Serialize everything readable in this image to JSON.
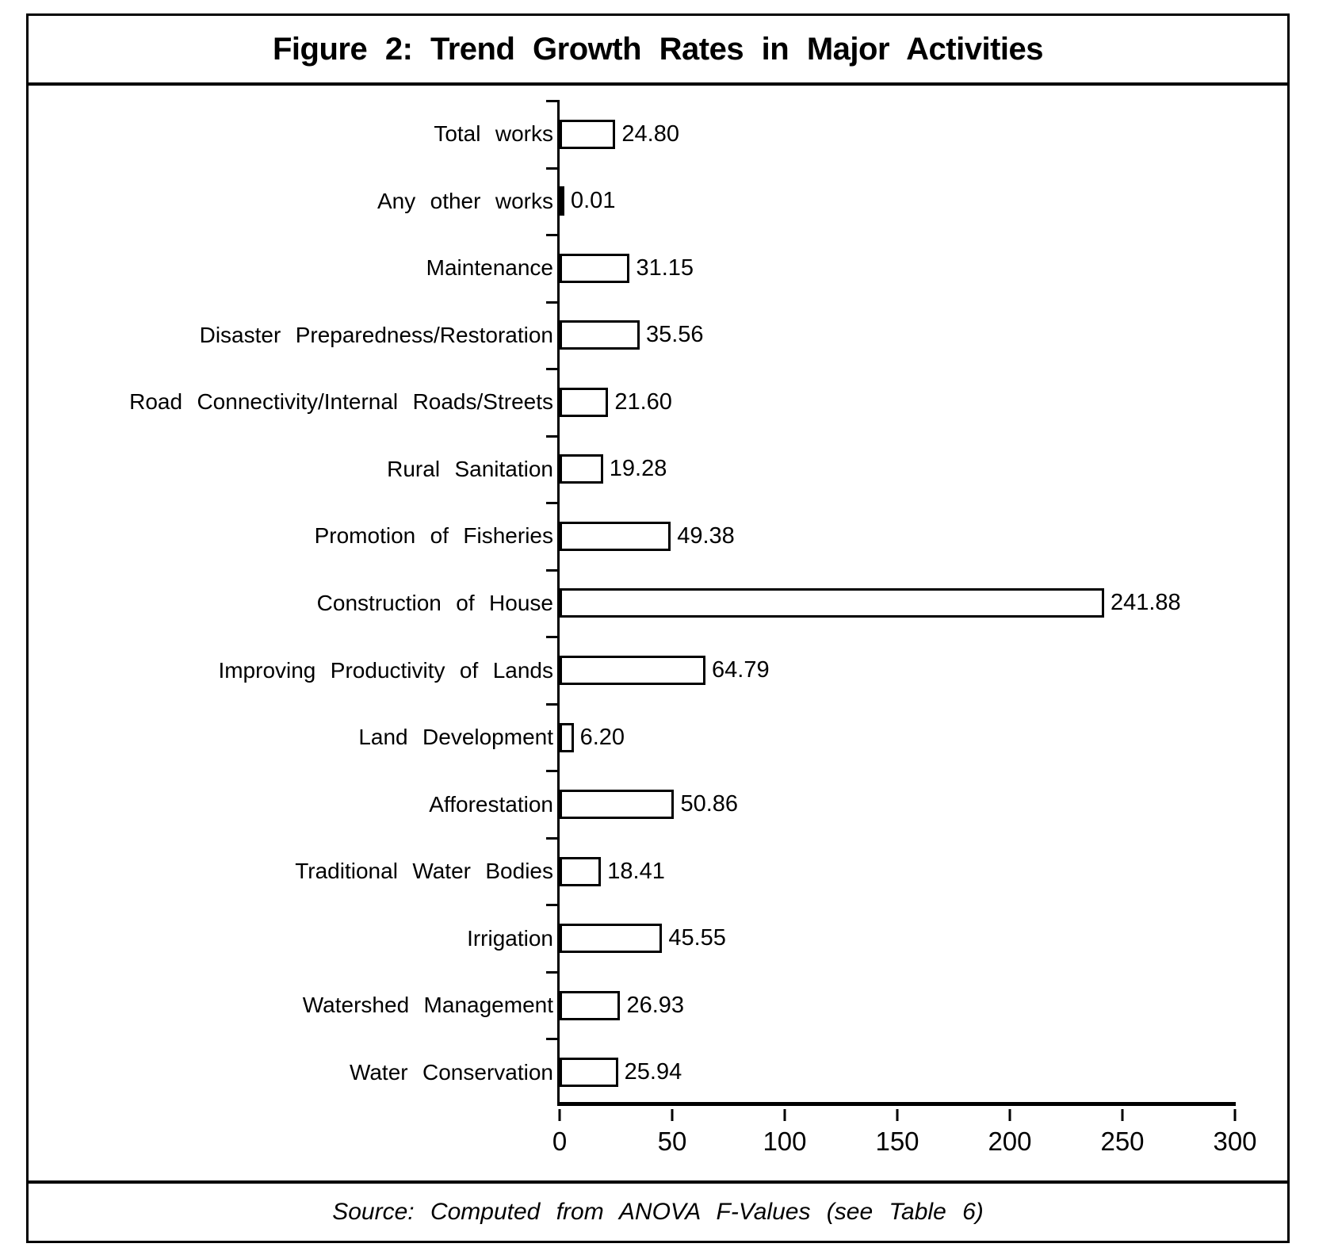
{
  "figure": {
    "title": "Figure 2: Trend Growth Rates in Major Activities",
    "source": "Source: Computed from ANOVA F-Values (see Table 6)"
  },
  "chart_data": {
    "type": "bar",
    "orientation": "horizontal",
    "title": "Figure 2: Trend Growth Rates in Major Activities",
    "xlabel": "",
    "ylabel": "",
    "xlim": [
      0,
      300
    ],
    "x_ticks": [
      0,
      50,
      100,
      150,
      200,
      250,
      300
    ],
    "grid": false,
    "legend": "none",
    "bar_fill_color": "#ffffff",
    "bar_border_color": "#000000",
    "text_color": "#000000",
    "categories": [
      "Total works",
      "Any other works",
      "Maintenance",
      "Disaster Preparedness/Restoration",
      "Road Connectivity/Internal Roads/Streets",
      "Rural Sanitation",
      "Promotion of Fisheries",
      "Construction of House",
      "Improving Productivity of Lands",
      "Land Development",
      "Afforestation",
      "Traditional Water Bodies",
      "Irrigation",
      "Watershed Management",
      "Water Conservation"
    ],
    "values": [
      24.8,
      0.01,
      31.15,
      35.56,
      21.6,
      19.28,
      49.38,
      241.88,
      64.79,
      6.2,
      50.86,
      18.41,
      45.55,
      26.93,
      25.94
    ],
    "value_labels": [
      "24.80",
      "0.01",
      "31.15",
      "35.56",
      "21.60",
      "19.28",
      "49.38",
      "241.88",
      "64.79",
      "6.20",
      "50.86",
      "18.41",
      "45.55",
      "26.93",
      "25.94"
    ]
  }
}
